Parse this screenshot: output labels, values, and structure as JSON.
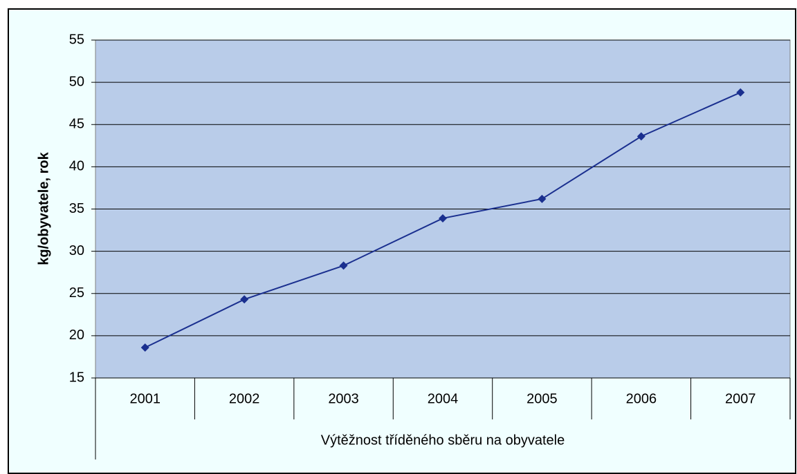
{
  "chart_data": {
    "type": "line",
    "categories": [
      "2001",
      "2002",
      "2003",
      "2004",
      "2005",
      "2006",
      "2007"
    ],
    "series": [
      {
        "name": "kg/obyvatele, rok",
        "color": "#1a2f8f",
        "values": [
          18.6,
          24.3,
          28.3,
          33.9,
          36.2,
          43.6,
          48.8
        ]
      }
    ],
    "ylabel": "kg/obyvatele, rok",
    "xlabel": "Výtěžnost tříděného sběru na obyvatele",
    "ylim": [
      15,
      55
    ],
    "yticks": [
      15,
      20,
      25,
      30,
      35,
      40,
      45,
      50,
      55
    ],
    "grid": true
  }
}
